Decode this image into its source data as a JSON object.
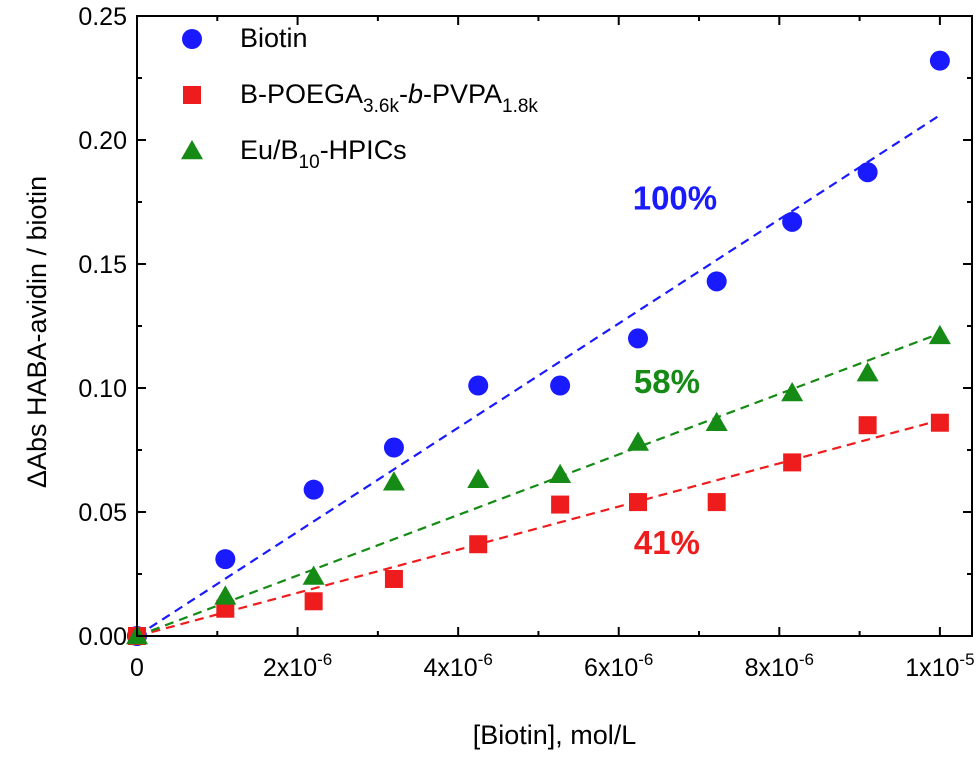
{
  "chart_data": {
    "type": "scatter",
    "xlabel": "[Biotin], mol/L",
    "ylabel": "ΔAbs HABA-avidin / biotin",
    "xlim": [
      0,
      1.04e-05
    ],
    "ylim": [
      0,
      0.25
    ],
    "grid": false,
    "legend_position": "top-left",
    "x_ticks": [
      {
        "value": 0,
        "label": "0",
        "exp": ""
      },
      {
        "value": 2e-06,
        "label": "2x10",
        "exp": "-6"
      },
      {
        "value": 4e-06,
        "label": "4x10",
        "exp": "-6"
      },
      {
        "value": 6e-06,
        "label": "6x10",
        "exp": "-6"
      },
      {
        "value": 8e-06,
        "label": "8x10",
        "exp": "-6"
      },
      {
        "value": 1e-05,
        "label": "1x10",
        "exp": "-5"
      }
    ],
    "y_ticks": [
      {
        "value": 0.0,
        "label": "0.00"
      },
      {
        "value": 0.05,
        "label": "0.05"
      },
      {
        "value": 0.1,
        "label": "0.10"
      },
      {
        "value": 0.15,
        "label": "0.15"
      },
      {
        "value": 0.2,
        "label": "0.20"
      },
      {
        "value": 0.25,
        "label": "0.25"
      }
    ],
    "series": [
      {
        "name": "Biotin",
        "name_parts": [
          {
            "t": "Biotin",
            "sub": false,
            "italic": false
          }
        ],
        "marker": "circle",
        "color": "#1a1aff",
        "points": [
          [
            0,
            0
          ],
          [
            1.1e-06,
            0.031
          ],
          [
            2.2e-06,
            0.059
          ],
          [
            3.2e-06,
            0.076
          ],
          [
            4.25e-06,
            0.101
          ],
          [
            5.27e-06,
            0.101
          ],
          [
            6.24e-06,
            0.12
          ],
          [
            7.22e-06,
            0.143
          ],
          [
            8.16e-06,
            0.167
          ],
          [
            9.1e-06,
            0.187
          ],
          [
            1e-05,
            0.232
          ]
        ],
        "fit": {
          "from": [
            0,
            0
          ],
          "to": [
            1e-05,
            0.21
          ]
        },
        "annotation": {
          "text": "100%",
          "x": 6.7e-06,
          "y": 0.172
        }
      },
      {
        "name": "B-POEGA3.6k-b-PVPA1.8k",
        "name_parts": [
          {
            "t": "B-POEGA",
            "sub": false,
            "italic": false
          },
          {
            "t": "3.6k",
            "sub": true,
            "italic": false
          },
          {
            "t": "-",
            "sub": false,
            "italic": false
          },
          {
            "t": "b",
            "sub": false,
            "italic": true
          },
          {
            "t": "-PVPA",
            "sub": false,
            "italic": false
          },
          {
            "t": "1.8k",
            "sub": true,
            "italic": false
          }
        ],
        "marker": "square",
        "color": "#ee1c1c",
        "points": [
          [
            0,
            0
          ],
          [
            1.1e-06,
            0.011
          ],
          [
            2.2e-06,
            0.014
          ],
          [
            3.2e-06,
            0.023
          ],
          [
            4.25e-06,
            0.037
          ],
          [
            5.27e-06,
            0.053
          ],
          [
            6.24e-06,
            0.054
          ],
          [
            7.22e-06,
            0.054
          ],
          [
            8.16e-06,
            0.07
          ],
          [
            9.1e-06,
            0.085
          ],
          [
            1e-05,
            0.086
          ]
        ],
        "fit": {
          "from": [
            0,
            0
          ],
          "to": [
            1e-05,
            0.087
          ]
        },
        "annotation": {
          "text": "41%",
          "x": 6.6e-06,
          "y": 0.033
        }
      },
      {
        "name": "Eu/B10-HPICs",
        "name_parts": [
          {
            "t": "Eu/B",
            "sub": false,
            "italic": false
          },
          {
            "t": "10",
            "sub": true,
            "italic": false
          },
          {
            "t": "-HPICs",
            "sub": false,
            "italic": false
          }
        ],
        "marker": "triangle",
        "color": "#158a15",
        "points": [
          [
            0,
            0
          ],
          [
            1.1e-06,
            0.016
          ],
          [
            2.2e-06,
            0.024
          ],
          [
            3.2e-06,
            0.062
          ],
          [
            4.25e-06,
            0.063
          ],
          [
            5.27e-06,
            0.065
          ],
          [
            6.24e-06,
            0.078
          ],
          [
            7.22e-06,
            0.086
          ],
          [
            8.16e-06,
            0.098
          ],
          [
            9.1e-06,
            0.106
          ],
          [
            1e-05,
            0.121
          ]
        ],
        "fit": {
          "from": [
            0,
            0
          ],
          "to": [
            1e-05,
            0.122
          ]
        },
        "annotation": {
          "text": "58%",
          "x": 6.6e-06,
          "y": 0.098
        }
      }
    ]
  }
}
